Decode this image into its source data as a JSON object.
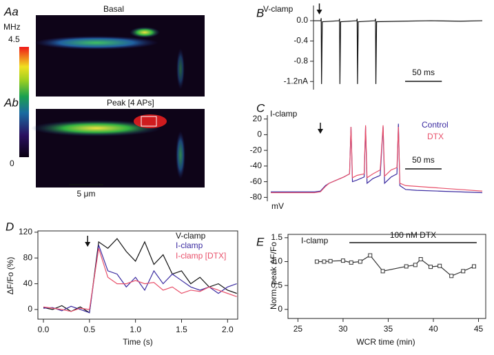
{
  "panel_a": {
    "label_top": "Aa",
    "title_top": "Basal",
    "label_bottom": "Ab",
    "title_bottom": "Peak [4 APs]",
    "colorbar_unit": "MHz",
    "colorbar_ticks": [
      0,
      4.5
    ],
    "scale_bar": "5 μm"
  },
  "chart_data": [
    {
      "type": "line",
      "panel": "B",
      "label": "V-clamp",
      "x": [
        0,
        10,
        10.5,
        11,
        12,
        35,
        35.5,
        36,
        37,
        59,
        59.5,
        60,
        61,
        84,
        84.5,
        85,
        86,
        120,
        160,
        200,
        230
      ],
      "series": [
        {
          "color": "#111111",
          "values": [
            0,
            0,
            0.05,
            -1.25,
            -0.02,
            0,
            0.04,
            -1.25,
            -0.02,
            0,
            0.04,
            -1.25,
            -0.02,
            0,
            0.04,
            -1.25,
            -0.02,
            -0.01,
            0,
            -0.01,
            0
          ]
        }
      ],
      "xlim": [
        0,
        230
      ],
      "ylim": [
        -1.36,
        0.3
      ],
      "yticks": [
        {
          "value": 0,
          "label": "0.0"
        },
        -0.4,
        -0.8,
        {
          "value": -1.2,
          "label": "-1.2nA"
        }
      ],
      "arrow_x": 8,
      "scale_bar": {
        "value": 50,
        "label": "50 ms"
      }
    },
    {
      "type": "line",
      "panel": "C",
      "label": "I-clamp",
      "y_unit": "mV",
      "x": [
        0,
        60,
        68,
        75,
        80,
        90,
        100,
        108,
        110,
        112,
        118,
        128,
        130,
        132,
        140,
        150,
        154,
        156,
        165,
        173,
        175,
        177,
        185,
        200,
        230,
        260,
        290
      ],
      "series": [
        {
          "name": "Control",
          "color": "#3a2aa0",
          "values": [
            -73,
            -73,
            -72,
            -65,
            -62,
            -58,
            -54,
            -50,
            10,
            -60,
            -58,
            -54,
            10,
            -62,
            -56,
            -52,
            10,
            -62,
            -54,
            -50,
            14,
            -65,
            -70,
            -71,
            -72,
            -73,
            -74
          ]
        },
        {
          "name": "DTX",
          "color": "#e8506a",
          "values": [
            -74,
            -74,
            -73,
            -66,
            -62,
            -58,
            -54,
            -50,
            10,
            -55,
            -52,
            -50,
            12,
            -55,
            -50,
            -45,
            12,
            -53,
            -45,
            -42,
            10,
            -62,
            -65,
            -66,
            -68,
            -70,
            -72
          ]
        }
      ],
      "xlim": [
        0,
        290
      ],
      "ylim": [
        -85,
        25
      ],
      "yticks": [
        20,
        0,
        -20,
        -40,
        -60,
        -80
      ],
      "arrow_x": 68,
      "scale_bar": {
        "value": 50,
        "label": "50 ms"
      }
    },
    {
      "type": "line",
      "panel": "D",
      "x_label": "Time (s)",
      "y_label": "ΔF/Fo (%)",
      "x": [
        0,
        0.1,
        0.2,
        0.3,
        0.4,
        0.5,
        0.6,
        0.7,
        0.8,
        0.9,
        1.0,
        1.1,
        1.2,
        1.3,
        1.4,
        1.5,
        1.6,
        1.7,
        1.8,
        1.9,
        2.0,
        2.1
      ],
      "series": [
        {
          "name": "V-clamp",
          "color": "#111111",
          "values": [
            3,
            0,
            6,
            -3,
            4,
            -5,
            105,
            95,
            110,
            90,
            75,
            105,
            70,
            85,
            55,
            60,
            40,
            50,
            35,
            40,
            30,
            25
          ]
        },
        {
          "name": "I-clamp",
          "color": "#3a2aa0",
          "values": [
            2,
            3,
            -2,
            5,
            0,
            -5,
            100,
            60,
            55,
            35,
            50,
            30,
            60,
            40,
            55,
            45,
            35,
            30,
            35,
            25,
            35,
            40
          ]
        },
        {
          "name": "I-clamp  [DTX]",
          "color": "#e8506a",
          "values": [
            4,
            2,
            0,
            -3,
            2,
            0,
            95,
            50,
            40,
            40,
            45,
            40,
            42,
            30,
            35,
            25,
            30,
            28,
            35,
            30,
            25,
            20
          ]
        }
      ],
      "xlim": [
        -0.06,
        2.11
      ],
      "xticks": [
        {
          "value": 0,
          "label": "0.0"
        },
        0.5,
        {
          "value": 1,
          "label": "1.0"
        },
        1.5,
        {
          "value": 2,
          "label": "2.0"
        }
      ],
      "ylim": [
        -15,
        122
      ],
      "yticks": [
        0,
        40,
        80,
        120
      ],
      "arrow_x": 0.48
    },
    {
      "type": "line",
      "panel": "E",
      "label": "I-clamp",
      "x_label": "WCR time (min)",
      "y_label": "Norm. peak ΔF/Fo",
      "markers": true,
      "x": [
        27.1,
        27.9,
        28.6,
        30,
        30.9,
        31.9,
        33,
        34.4,
        37,
        38,
        38.6,
        39.7,
        40.7,
        42,
        43.3,
        44.5
      ],
      "series": [
        {
          "color": "#333333",
          "values": [
            1,
            1,
            1.01,
            1.02,
            0.98,
            1,
            1.13,
            0.8,
            0.9,
            0.93,
            1.05,
            0.89,
            0.91,
            0.7,
            0.8,
            0.9
          ]
        }
      ],
      "xlim": [
        23.9,
        45.8
      ],
      "xticks": [
        25,
        30,
        35,
        40,
        45
      ],
      "ylim": [
        -0.19,
        1.57
      ],
      "yticks": [
        0,
        0.5,
        {
          "value": 1,
          "label": "1.0"
        },
        {
          "value": 1.5,
          "label": "1.5"
        }
      ],
      "span": {
        "label": "100 nM DTX",
        "range": [
          30.7,
          44.8
        ]
      }
    }
  ]
}
